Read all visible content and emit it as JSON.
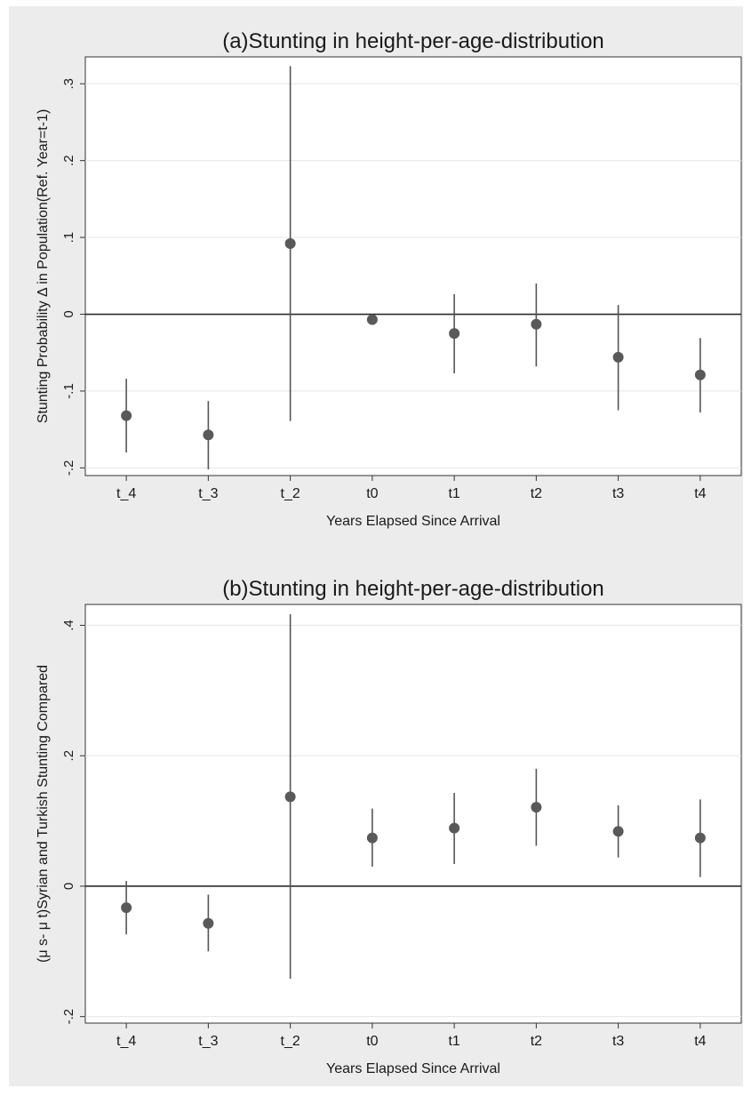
{
  "chart_data": [
    {
      "type": "scatter",
      "title": "(a)Stunting in height-per-age-distribution",
      "xlabel": "Years Elapsed Since Arrival",
      "ylabel": "Stunting Probability Δ in Population(Ref. Year=t-1)",
      "categories": [
        "t_4",
        "t_3",
        "t_2",
        "t0",
        "t1",
        "t2",
        "t3",
        "t4"
      ],
      "estimate": [
        -0.132,
        -0.157,
        0.092,
        -0.007,
        -0.025,
        -0.013,
        -0.056,
        -0.079
      ],
      "ci_low": [
        -0.18,
        -0.202,
        -0.139,
        -0.01,
        -0.077,
        -0.068,
        -0.125,
        -0.128
      ],
      "ci_high": [
        -0.084,
        -0.113,
        0.323,
        -0.004,
        0.026,
        0.04,
        0.012,
        -0.031
      ],
      "ylim": [
        -0.21,
        0.335
      ],
      "yticks": [
        -0.2,
        -0.1,
        0,
        0.1,
        0.2,
        0.3
      ],
      "ytick_labels": [
        "-.2",
        "-.1",
        "0",
        ".1",
        ".2",
        ".3"
      ],
      "reference_line": 0,
      "grid": true,
      "legend": "none"
    },
    {
      "type": "scatter",
      "title": "(b)Stunting in height-per-age-distribution",
      "xlabel": "Years Elapsed Since Arrival",
      "ylabel": "(μ s- μ t)Syrian and Turkish Stunting Compared",
      "categories": [
        "t_4",
        "t_3",
        "t_2",
        "t0",
        "t1",
        "t2",
        "t3",
        "t4"
      ],
      "estimate": [
        -0.033,
        -0.057,
        0.137,
        0.074,
        0.089,
        0.121,
        0.084,
        0.074
      ],
      "ci_low": [
        -0.074,
        -0.1,
        -0.142,
        0.03,
        0.034,
        0.062,
        0.044,
        0.014
      ],
      "ci_high": [
        0.008,
        -0.013,
        0.417,
        0.119,
        0.143,
        0.18,
        0.124,
        0.133
      ],
      "ylim": [
        -0.21,
        0.432
      ],
      "yticks": [
        -0.2,
        0,
        0.2,
        0.4
      ],
      "ytick_labels": [
        "-.2",
        "0",
        ".2",
        ".4"
      ],
      "reference_line": 0,
      "grid": true,
      "legend": "none"
    }
  ]
}
